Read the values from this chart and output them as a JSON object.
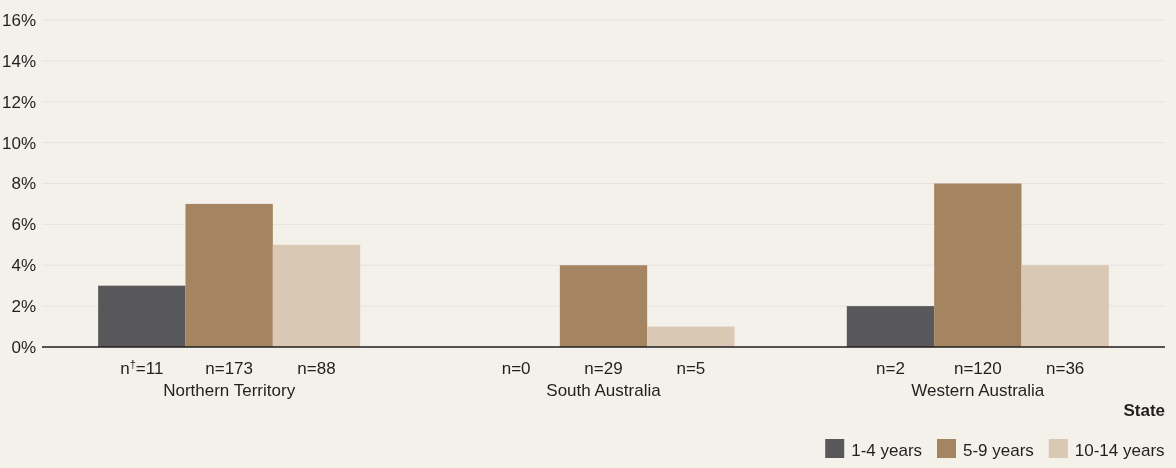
{
  "chart_data": {
    "type": "bar",
    "xlabel": "State",
    "categories": [
      "Northern Territory",
      "South Australia",
      "Western Australia"
    ],
    "series": [
      {
        "name": "1-4 years",
        "color": "#58585a",
        "values": [
          3,
          0,
          2
        ]
      },
      {
        "name": "5-9 years",
        "color": "#a58462",
        "values": [
          7,
          4,
          8
        ]
      },
      {
        "name": "10-14 years",
        "color": "#d9c8b4",
        "values": [
          5,
          1,
          4
        ]
      }
    ],
    "ylim": [
      0,
      16
    ],
    "yticks": [
      {
        "value": 0,
        "label": "0%"
      },
      {
        "value": 2,
        "label": "2%"
      },
      {
        "value": 4,
        "label": "4%"
      },
      {
        "value": 6,
        "label": "6%"
      },
      {
        "value": 8,
        "label": "8%"
      },
      {
        "value": 10,
        "label": "10%"
      },
      {
        "value": 12,
        "label": "12%"
      },
      {
        "value": 14,
        "label": "14%"
      },
      {
        "value": 16,
        "label": "16%"
      }
    ],
    "grid": "y",
    "legend": "bottom right",
    "annotations": [
      "n$^{†}$=11",
      "n=173",
      "n=88",
      "n=0",
      "n=29",
      "n=5",
      "n=2",
      "n=120",
      "n=36"
    ]
  }
}
